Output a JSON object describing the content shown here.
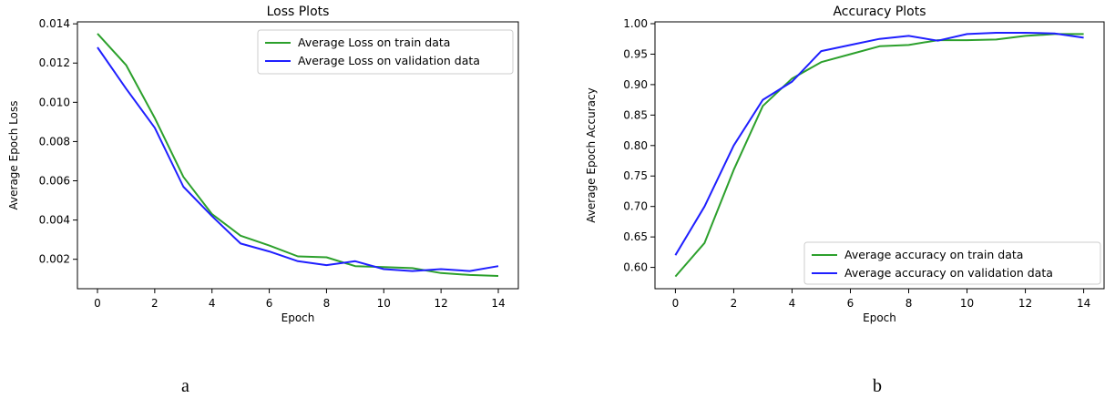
{
  "panels": [
    {
      "caption": "a"
    },
    {
      "caption": "b"
    }
  ],
  "chart_data": [
    {
      "type": "line",
      "title": "Loss Plots",
      "xlabel": "Epoch",
      "ylabel": "Average Epoch Loss",
      "x": [
        0,
        1,
        2,
        3,
        4,
        5,
        6,
        7,
        8,
        9,
        10,
        11,
        12,
        13,
        14
      ],
      "xlim": [
        -0.7,
        14.7
      ],
      "ylim": [
        0.0005,
        0.0141
      ],
      "xticks": [
        0,
        2,
        4,
        6,
        8,
        10,
        12,
        14
      ],
      "xtick_labels": [
        "0",
        "2",
        "4",
        "6",
        "8",
        "10",
        "12",
        "14"
      ],
      "yticks": [
        0.002,
        0.004,
        0.006,
        0.008,
        0.01,
        0.012,
        0.014
      ],
      "ytick_labels": [
        "0.002",
        "0.004",
        "0.006",
        "0.008",
        "0.010",
        "0.012",
        "0.014"
      ],
      "grid": false,
      "legend": "upper right",
      "series": [
        {
          "name": "Average Loss on train data",
          "color": "#2ca02c",
          "values": [
            0.0135,
            0.0119,
            0.0092,
            0.0062,
            0.0043,
            0.0032,
            0.0027,
            0.00215,
            0.0021,
            0.00165,
            0.0016,
            0.00155,
            0.0013,
            0.0012,
            0.00115
          ]
        },
        {
          "name": "Average Loss on validation data",
          "color": "#1f1fff",
          "values": [
            0.0128,
            0.0107,
            0.0087,
            0.0057,
            0.0042,
            0.0028,
            0.0024,
            0.0019,
            0.0017,
            0.0019,
            0.0015,
            0.0014,
            0.0015,
            0.0014,
            0.00165
          ]
        }
      ]
    },
    {
      "type": "line",
      "title": "Accuracy Plots",
      "xlabel": "Epoch",
      "ylabel": "Average Epoch Accuracy",
      "x": [
        0,
        1,
        2,
        3,
        4,
        5,
        6,
        7,
        8,
        9,
        10,
        11,
        12,
        13,
        14
      ],
      "xlim": [
        -0.7,
        14.7
      ],
      "ylim": [
        0.565,
        1.003
      ],
      "xticks": [
        0,
        2,
        4,
        6,
        8,
        10,
        12,
        14
      ],
      "xtick_labels": [
        "0",
        "2",
        "4",
        "6",
        "8",
        "10",
        "12",
        "14"
      ],
      "yticks": [
        0.6,
        0.65,
        0.7,
        0.75,
        0.8,
        0.85,
        0.9,
        0.95,
        1.0
      ],
      "ytick_labels": [
        "0.60",
        "0.65",
        "0.70",
        "0.75",
        "0.80",
        "0.85",
        "0.90",
        "0.95",
        "1.00"
      ],
      "grid": false,
      "legend": "lower right",
      "series": [
        {
          "name": "Average accuracy on train data",
          "color": "#2ca02c",
          "values": [
            0.585,
            0.64,
            0.76,
            0.865,
            0.91,
            0.937,
            0.95,
            0.963,
            0.965,
            0.973,
            0.973,
            0.974,
            0.98,
            0.983,
            0.983
          ]
        },
        {
          "name": "Average accuracy on validation data",
          "color": "#1f1fff",
          "values": [
            0.62,
            0.7,
            0.8,
            0.875,
            0.905,
            0.955,
            0.965,
            0.975,
            0.98,
            0.972,
            0.983,
            0.985,
            0.985,
            0.984,
            0.977
          ]
        }
      ]
    }
  ]
}
